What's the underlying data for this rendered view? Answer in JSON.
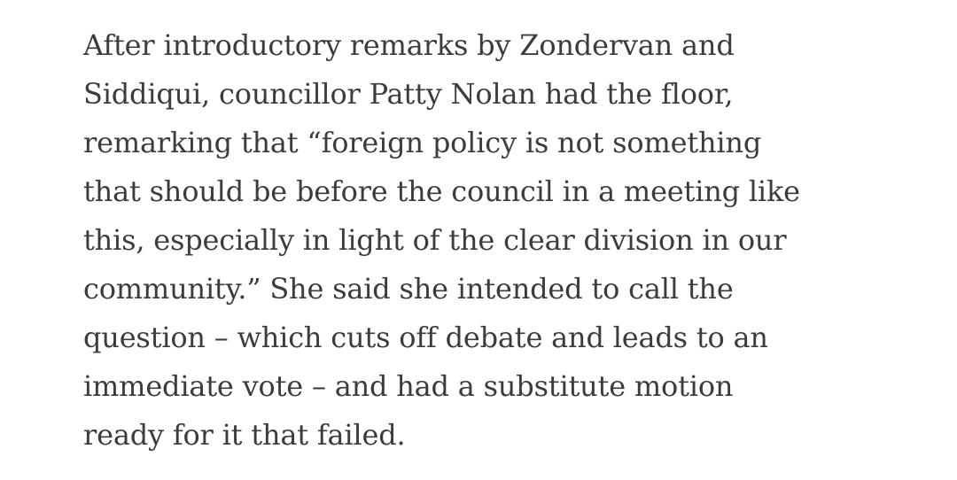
{
  "article": {
    "paragraph_lines": [
      "After introductory remarks by Zondervan and",
      "Siddiqui, councillor Patty Nolan had the floor,",
      "remarking that “foreign policy is not something",
      "that should be before the council in a meeting like",
      "this, especially in light of the clear division in our",
      "community.” She said she intended to call the",
      "question – which cuts off debate and leads to an",
      "immediate vote – and had a substitute motion",
      "ready for it that failed."
    ]
  },
  "colors": {
    "text": "#3c3c3c",
    "background": "#ffffff"
  }
}
